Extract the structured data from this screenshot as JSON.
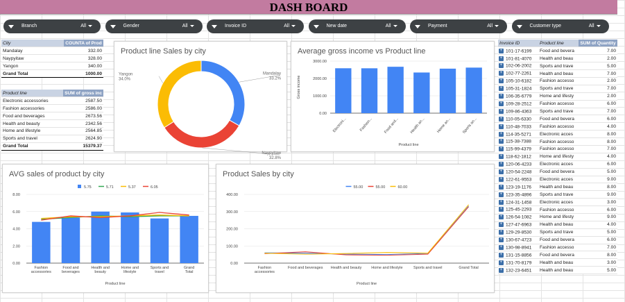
{
  "title": "DASH BOARD",
  "filters": [
    {
      "label": "Branch",
      "value": "All"
    },
    {
      "label": "Gender",
      "value": "All"
    },
    {
      "label": "Invoice ID",
      "value": "All"
    },
    {
      "label": "New date",
      "value": "All"
    },
    {
      "label": "Payment",
      "value": "All"
    },
    {
      "label": "Customer type",
      "value": "All"
    }
  ],
  "city_table": {
    "headers": [
      "City",
      "COUNTA of Prod"
    ],
    "rows": [
      [
        "Mandalay",
        "332.00"
      ],
      [
        "Naypyitaw",
        "328.00"
      ],
      [
        "Yangon",
        "340.00"
      ]
    ],
    "total": [
      "Grand Total",
      "1000.00"
    ]
  },
  "product_table": {
    "headers": [
      "Product line",
      "SUM of gross inc"
    ],
    "rows": [
      [
        "Electronic accessories",
        "2587.50"
      ],
      [
        "Fashion accessories",
        "2586.00"
      ],
      [
        "Food and beverages",
        "2673.56"
      ],
      [
        "Health and beauty",
        "2342.56"
      ],
      [
        "Home and lifestyle",
        "2564.85"
      ],
      [
        "Sports and travel",
        "2624.90"
      ]
    ],
    "total": [
      "Grand Total",
      "15379.37"
    ]
  },
  "invoice_table": {
    "headers": [
      "Invoice ID",
      "Product line",
      "SUM of Quantity"
    ],
    "rows": [
      [
        "101-17-6199",
        "Food and bevera",
        "7.00"
      ],
      [
        "101-81-4070",
        "Health and beau",
        "2.00"
      ],
      [
        "102-06-2002",
        "Sports and trave",
        "5.00"
      ],
      [
        "102-77-2261",
        "Health and beau",
        "7.00"
      ],
      [
        "105-10-6182",
        "Fashion accesso",
        "2.00"
      ],
      [
        "105-31-1824",
        "Sports and trave",
        "7.00"
      ],
      [
        "106-35-6779",
        "Home and lifesty",
        "2.00"
      ],
      [
        "109-28-2512",
        "Fashion accesso",
        "6.00"
      ],
      [
        "109-86-4363",
        "Sports and trave",
        "7.00"
      ],
      [
        "110-05-6330",
        "Food and bevera",
        "6.00"
      ],
      [
        "110-48-7033",
        "Fashion accesso",
        "4.00"
      ],
      [
        "114-35-5271",
        "Electronic acces",
        "8.00"
      ],
      [
        "115-38-7388",
        "Fashion accesso",
        "8.00"
      ],
      [
        "115-99-4379",
        "Fashion accesso",
        "7.00"
      ],
      [
        "118-62-1812",
        "Home and lifesty",
        "4.00"
      ],
      [
        "120-06-4233",
        "Electronic acces",
        "6.00"
      ],
      [
        "120-54-2248",
        "Food and bevera",
        "5.00"
      ],
      [
        "122-61-9553",
        "Electronic acces",
        "9.00"
      ],
      [
        "123-19-1176",
        "Health and beau",
        "8.00"
      ],
      [
        "123-35-4896",
        "Sports and trave",
        "9.00"
      ],
      [
        "124-31-1458",
        "Electronic acces",
        "3.00"
      ],
      [
        "125-45-2293",
        "Fashion accesso",
        "6.00"
      ],
      [
        "126-54-1082",
        "Home and lifesty",
        "9.00"
      ],
      [
        "127-47-6963",
        "Health and beau",
        "4.00"
      ],
      [
        "129-29-8530",
        "Sports and trave",
        "5.00"
      ],
      [
        "130-67-4723",
        "Food and bevera",
        "6.00"
      ],
      [
        "130-98-8941",
        "Fashion accesso",
        "7.00"
      ],
      [
        "131-15-8856",
        "Food and bevera",
        "8.00"
      ],
      [
        "131-70-8179",
        "Health and beau",
        "3.00"
      ],
      [
        "132-23-6451",
        "Health and beau",
        "5.00"
      ]
    ]
  },
  "chart_data": [
    {
      "type": "pie",
      "title": "Product line Sales by city",
      "categories": [
        "Mandalay",
        "Naypyitaw",
        "Yangon"
      ],
      "values": [
        33.2,
        32.8,
        34.0
      ],
      "labels": [
        "33.2%",
        "32.8%",
        "34.0%"
      ],
      "colors": [
        "#4285f4",
        "#ea4335",
        "#fbbc04"
      ],
      "donut": true
    },
    {
      "type": "bar",
      "title": "Average gross income vs Product line",
      "categories": [
        "Electroni...",
        "Fashion...",
        "Food and...",
        "Health an...",
        "Home an...",
        "Sports an..."
      ],
      "values": [
        2587.5,
        2586.0,
        2673.56,
        2342.56,
        2564.85,
        2624.9
      ],
      "xlabel": "Product line",
      "ylabel": "Gross income",
      "ylim": [
        0,
        3000
      ],
      "yticks": [
        "0.00",
        "1000.00",
        "2000.00",
        "3000.00"
      ],
      "color": "#4285f4"
    },
    {
      "type": "bar",
      "title": "AVG sales of product by city",
      "categories": [
        "Fashion accessories",
        "Food and beverages",
        "Health and beauty",
        "Home and lifestyle",
        "Sports and travel",
        "Grand Total"
      ],
      "series": [
        {
          "name": "5.75",
          "type": "bar",
          "color": "#4285f4",
          "values": [
            4.8,
            5.3,
            6.0,
            5.9,
            5.2,
            5.5
          ]
        },
        {
          "name": "5.71",
          "type": "line",
          "color": "#34a853",
          "values": [
            5.1,
            5.3,
            5.5,
            5.4,
            5.5,
            5.5
          ]
        },
        {
          "name": "5.37",
          "type": "line",
          "color": "#fbbc04",
          "values": [
            5.2,
            5.4,
            5.4,
            5.5,
            5.6,
            5.5
          ]
        },
        {
          "name": "6.05",
          "type": "line",
          "color": "#ea4335",
          "values": [
            5.0,
            5.5,
            5.3,
            5.5,
            5.9,
            5.6
          ]
        }
      ],
      "xlabel": "Product line",
      "ylim": [
        0,
        8
      ],
      "yticks": [
        "0.00",
        "2.00",
        "4.00",
        "6.00",
        "8.00"
      ],
      "legend": "top"
    },
    {
      "type": "line",
      "title": "Product Sales by city",
      "categories": [
        "Fashion accessories",
        "Food and beverages",
        "Health and beauty",
        "Home and lifestyle",
        "Sports and travel",
        "Grand Total"
      ],
      "series": [
        {
          "name": "55.00",
          "color": "#4285f4",
          "values": [
            60,
            58,
            52,
            50,
            56,
            332
          ]
        },
        {
          "name": "55.00",
          "color": "#ea4335",
          "values": [
            55,
            66,
            48,
            46,
            52,
            328
          ]
        },
        {
          "name": "60.00",
          "color": "#fbbc04",
          "values": [
            58,
            52,
            56,
            62,
            58,
            340
          ]
        }
      ],
      "xlabel": "Product line",
      "ylim": [
        0,
        400
      ],
      "yticks": [
        "0.00",
        "100.00",
        "200.00",
        "300.00",
        "400.00"
      ],
      "legend": "top"
    }
  ]
}
